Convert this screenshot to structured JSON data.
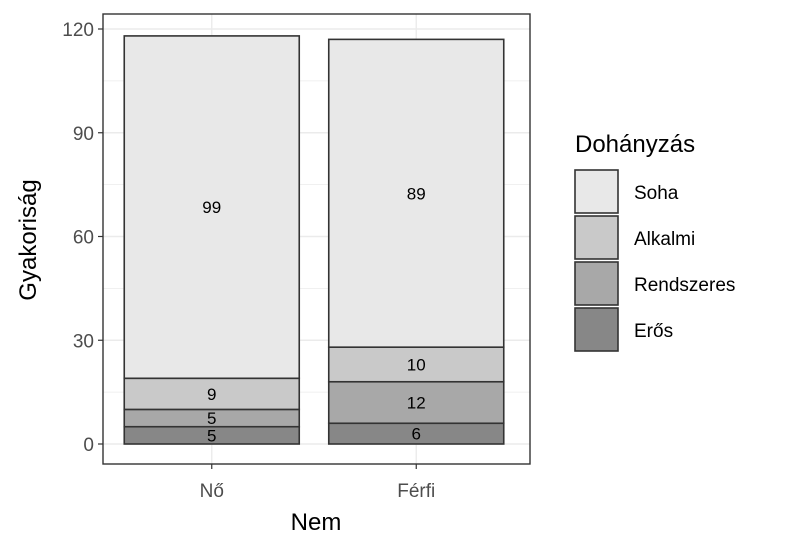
{
  "chart_data": {
    "type": "bar",
    "stacked": true,
    "categories": [
      "Nő",
      "Férfi"
    ],
    "series": [
      {
        "name": "Erős",
        "values": [
          5,
          6
        ],
        "color": "#878787"
      },
      {
        "name": "Rendszeres",
        "values": [
          5,
          12
        ],
        "color": "#a8a8a8"
      },
      {
        "name": "Alkalmi",
        "values": [
          9,
          10
        ],
        "color": "#c9c9c9"
      },
      {
        "name": "Soha",
        "values": [
          99,
          89
        ],
        "color": "#e8e8e8"
      }
    ],
    "xlabel": "Nem",
    "ylabel": "Gyakoriság",
    "ylim": [
      0,
      120
    ],
    "yticks": [
      0,
      30,
      60,
      90,
      120
    ],
    "grid": true,
    "legend": {
      "title": "Dohányzás",
      "position": "right",
      "entries": [
        "Soha",
        "Alkalmi",
        "Rendszeres",
        "Erős"
      ]
    },
    "theme": {
      "panel_border": "#333333",
      "grid_color": "#ebebeb",
      "bar_border": "#333333"
    }
  }
}
